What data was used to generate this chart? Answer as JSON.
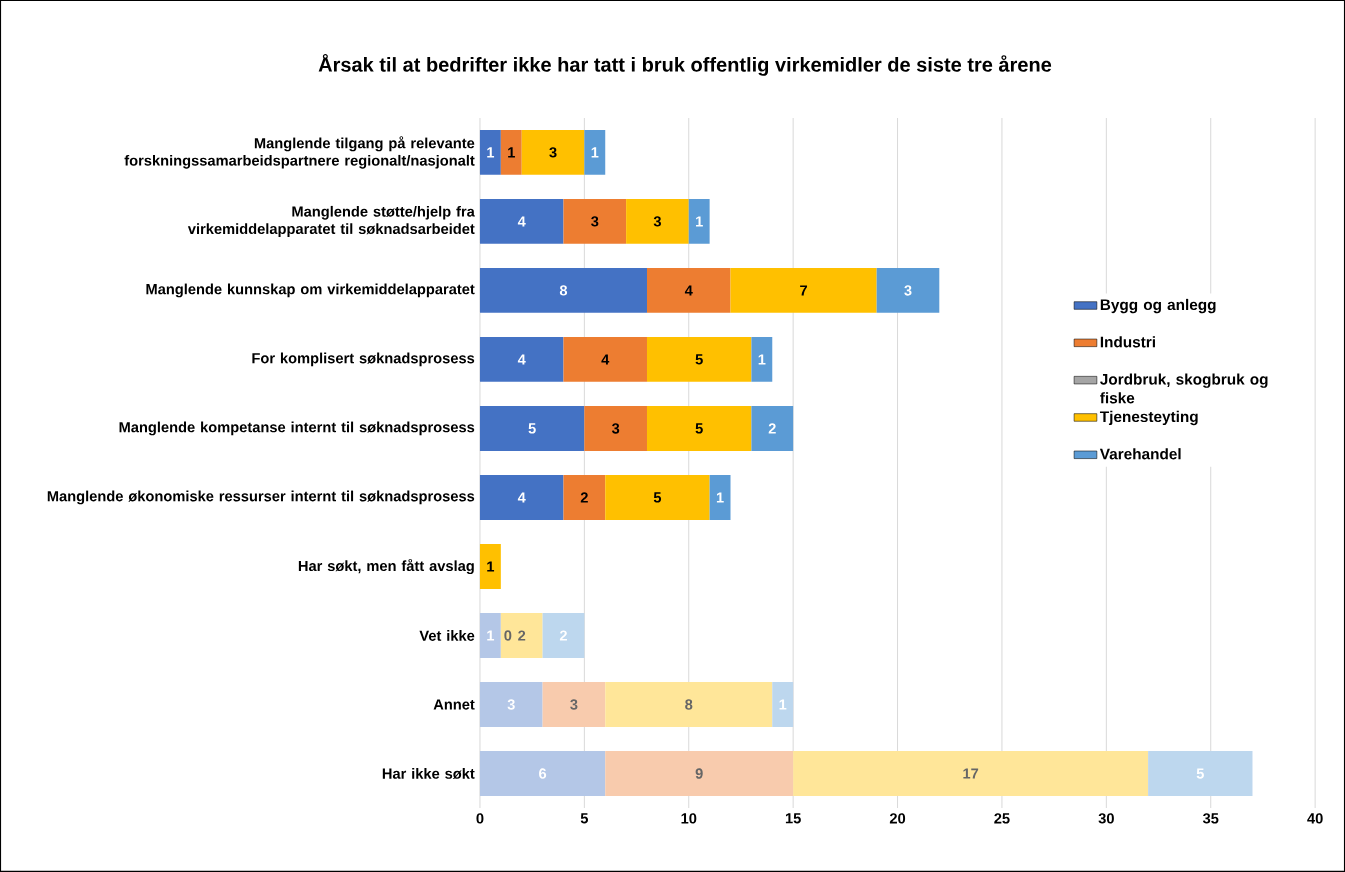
{
  "chart_data": {
    "type": "bar",
    "orientation": "horizontal",
    "stacked": true,
    "title": "Årsak til at bedrifter ikke har tatt i bruk offentlig virkemidler de siste tre årene",
    "categories": [
      "Manglende tilgang på relevante forskningssamarbeidspartnere regionalt/nasjonalt",
      "Manglende støtte/hjelp fra virkemiddelapparatet til søknadsarbeidet",
      "Manglende kunnskap om virkemiddelapparatet",
      "For komplisert søknadsprosess",
      "Manglende kompetanse internt til søknadsprosess",
      "Manglende økonomiske ressurser internt til søknadsprosess",
      "Har søkt, men fått avslag",
      "Vet ikke",
      "Annet",
      "Har ikke søkt"
    ],
    "series": [
      {
        "name": "Bygg og anlegg",
        "color": "#4472c4",
        "colors": [
          "#4472c4",
          "#4472c4",
          "#4472c4",
          "#4472c4",
          "#4472c4",
          "#4472c4",
          "#4472c4",
          "#b4c7e7",
          "#b4c7e7",
          "#b4c7e7"
        ],
        "values": [
          1,
          4,
          8,
          4,
          5,
          4,
          null,
          1,
          3,
          6
        ]
      },
      {
        "name": "Industri",
        "color": "#ed7d31",
        "colors": [
          "#ed7d31",
          "#ed7d31",
          "#ed7d31",
          "#ed7d31",
          "#ed7d31",
          "#ed7d31",
          "#ed7d31",
          "#f8cbad",
          "#f8cbad",
          "#f8cbad"
        ],
        "values": [
          1,
          3,
          4,
          4,
          3,
          2,
          null,
          null,
          3,
          9
        ]
      },
      {
        "name": "Jordbruk, skogbruk og fiske",
        "color": "#a5a5a5",
        "values": [
          null,
          null,
          null,
          null,
          null,
          null,
          null,
          null,
          null,
          null
        ]
      },
      {
        "name": "Tjenesteyting",
        "color": "#ffc000",
        "colors": [
          "#ffc000",
          "#ffc000",
          "#ffc000",
          "#ffc000",
          "#ffc000",
          "#ffc000",
          "#ffc000",
          "#ffe699",
          "#ffe699",
          "#ffe699"
        ],
        "values": [
          3,
          3,
          7,
          5,
          5,
          5,
          1,
          2,
          8,
          17
        ]
      },
      {
        "name": "Varehandel",
        "color": "#5b9bd5",
        "colors": [
          "#5b9bd5",
          "#5b9bd5",
          "#5b9bd5",
          "#5b9bd5",
          "#5b9bd5",
          "#5b9bd5",
          "#5b9bd5",
          "#bdd7ee",
          "#bdd7ee",
          "#bdd7ee"
        ],
        "values": [
          1,
          1,
          3,
          1,
          2,
          1,
          null,
          2,
          1,
          5
        ]
      }
    ],
    "xlim": [
      0,
      40
    ],
    "xticks": [
      0,
      5,
      10,
      15,
      20,
      25,
      30,
      35,
      40
    ],
    "annotations": [
      {
        "text": "0",
        "x": 1,
        "y": "Vet ikke"
      }
    ],
    "grid": "x",
    "legend": "right",
    "data_labels": true
  }
}
